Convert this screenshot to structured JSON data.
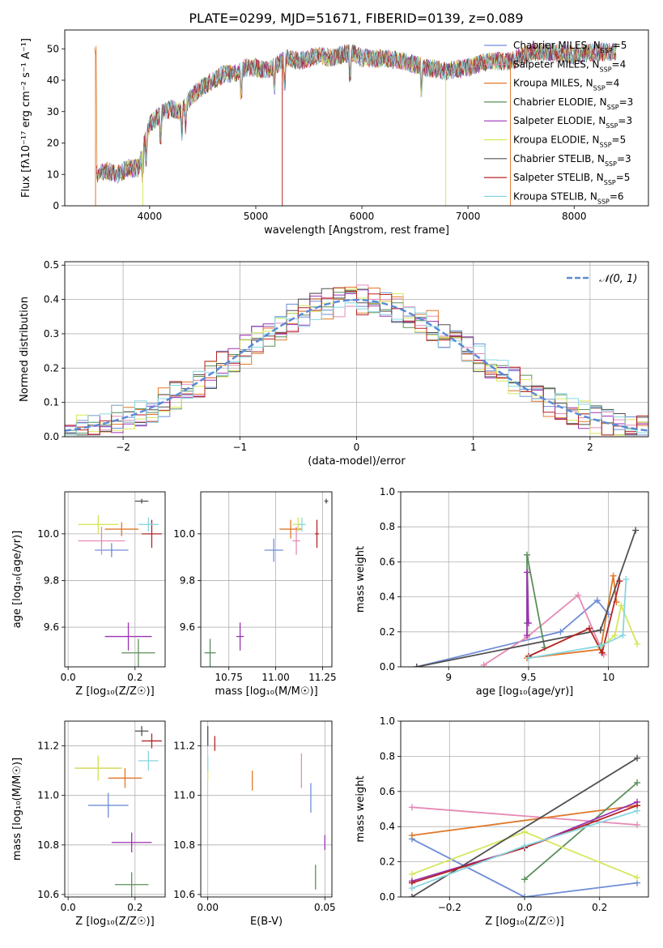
{
  "figure_title": "PLATE=0299, MJD=51671, FIBERID=0139, z=0.089",
  "colors": {
    "Chabrier MILES": "#6f8dd6",
    "Salpeter MILES": "#e58ab5",
    "Kroupa MILES": "#e0782a",
    "Chabrier ELODIE": "#5b8f5b",
    "Salpeter ELODIE": "#9b33b3",
    "Kroupa ELODIE": "#d6e65a",
    "Chabrier STELIB": "#505050",
    "Salpeter STELIB": "#b52424",
    "Kroupa STELIB": "#88d6e0"
  },
  "chart_data": [
    {
      "type": "line",
      "title": "PLATE=0299, MJD=51671, FIBERID=0139, z=0.089",
      "xlabel": "wavelength [Angstrom, rest frame]",
      "ylabel": "Flux [fλ10⁻¹⁷ erg cm⁻² s⁻¹ A⁻¹]",
      "xlim": [
        3200,
        8700
      ],
      "ylim": [
        0,
        56
      ],
      "xticks": [
        4000,
        5000,
        6000,
        7000,
        8000
      ],
      "yticks": [
        0,
        10,
        20,
        30,
        40,
        50
      ],
      "legend_position": "top-right",
      "continuum": {
        "x": [
          3500,
          3600,
          3700,
          3800,
          3900,
          3950,
          4000,
          4100,
          4200,
          4300,
          4400,
          4500,
          4600,
          4700,
          4800,
          4900,
          5000,
          5100,
          5200,
          5300,
          5400,
          5500,
          5600,
          5700,
          5800,
          5900,
          6000,
          6200,
          6400,
          6600,
          6800,
          7000,
          7200,
          7400,
          7600,
          7800,
          8000,
          8200,
          8400
        ],
        "y": [
          10,
          11,
          10,
          12,
          12,
          20,
          26,
          29,
          31,
          30,
          35,
          38,
          40,
          42,
          42,
          44,
          44,
          43,
          45,
          47,
          46,
          47,
          48,
          47,
          48,
          49,
          47,
          47,
          46,
          44,
          43,
          44,
          46,
          46,
          49,
          49,
          48,
          49,
          49
        ]
      },
      "series": [
        {
          "name": "Chabrier MILES, N_SSP=5"
        },
        {
          "name": "Salpeter MILES, N_SSP=4"
        },
        {
          "name": "Kroupa MILES, N_SSP=4"
        },
        {
          "name": "Chabrier ELODIE, N_SSP=3"
        },
        {
          "name": "Salpeter ELODIE, N_SSP=3"
        },
        {
          "name": "Kroupa ELODIE, N_SSP=5"
        },
        {
          "name": "Chabrier STELIB, N_SSP=3"
        },
        {
          "name": "Salpeter STELIB, N_SSP=5"
        },
        {
          "name": "Kroupa STELIB, N_SSP=6"
        }
      ]
    },
    {
      "type": "bar",
      "xlabel": "(data-model)/error",
      "ylabel": "Normed distribution",
      "xlim": [
        -2.5,
        2.5
      ],
      "ylim": [
        0,
        0.51
      ],
      "xticks": [
        -2,
        -1,
        0,
        1,
        2
      ],
      "yticks": [
        0.0,
        0.1,
        0.2,
        0.3,
        0.4,
        0.5
      ],
      "reference": {
        "name": "𝒩(0, 1)",
        "style": "dashed",
        "color": "#5b8bd6"
      },
      "bin_width": 0.1
    },
    {
      "type": "scatter",
      "xlabel": "Z [log₁₀(Z/Z☉)]",
      "ylabel": "age  [log₁₀(age/yr)]",
      "xlim": [
        -0.01,
        0.29
      ],
      "ylim": [
        9.43,
        10.18
      ],
      "xticks": [
        0.0,
        0.2
      ],
      "yticks": [
        9.6,
        9.8,
        10.0
      ],
      "points": [
        {
          "x": 0.13,
          "y": 9.93,
          "xerr": 0.05,
          "yerr": 0.03
        },
        {
          "x": 0.1,
          "y": 9.97,
          "xerr": 0.07,
          "yerr": 0.06
        },
        {
          "x": 0.16,
          "y": 10.02,
          "xerr": 0.05,
          "yerr": 0.03
        },
        {
          "x": 0.21,
          "y": 9.49,
          "xerr": 0.05,
          "yerr": 0.06
        },
        {
          "x": 0.18,
          "y": 9.56,
          "xerr": 0.07,
          "yerr": 0.06
        },
        {
          "x": 0.09,
          "y": 10.04,
          "xerr": 0.06,
          "yerr": 0.04
        },
        {
          "x": 0.22,
          "y": 10.14,
          "xerr": 0.02,
          "yerr": 0.01
        },
        {
          "x": 0.25,
          "y": 10.0,
          "xerr": 0.03,
          "yerr": 0.06
        },
        {
          "x": 0.24,
          "y": 10.04,
          "xerr": 0.03,
          "yerr": 0.03
        }
      ]
    },
    {
      "type": "scatter",
      "xlabel": "mass [log₁₀(M/M☉)]",
      "ylabel": "",
      "xlim": [
        10.6,
        11.3
      ],
      "ylim": [
        9.43,
        10.18
      ],
      "xticks": [
        10.75,
        11.0,
        11.25
      ],
      "yticks": [
        9.6,
        9.8,
        10.0
      ],
      "points": [
        {
          "x": 10.99,
          "y": 9.93,
          "xerr": 0.05,
          "yerr": 0.05
        },
        {
          "x": 11.11,
          "y": 9.97,
          "xerr": 0.02,
          "yerr": 0.06
        },
        {
          "x": 11.08,
          "y": 10.02,
          "xerr": 0.06,
          "yerr": 0.04
        },
        {
          "x": 10.65,
          "y": 9.49,
          "xerr": 0.03,
          "yerr": 0.06
        },
        {
          "x": 10.81,
          "y": 9.56,
          "xerr": 0.02,
          "yerr": 0.06
        },
        {
          "x": 11.12,
          "y": 10.04,
          "xerr": 0.03,
          "yerr": 0.03
        },
        {
          "x": 11.27,
          "y": 10.14,
          "xerr": 0.01,
          "yerr": 0.01
        },
        {
          "x": 11.22,
          "y": 10.0,
          "xerr": 0.01,
          "yerr": 0.06
        },
        {
          "x": 11.14,
          "y": 10.04,
          "xerr": 0.02,
          "yerr": 0.03
        }
      ]
    },
    {
      "type": "line",
      "xlabel": "age  [log₁₀(age/yr)]",
      "ylabel": "mass weight",
      "xlim": [
        8.7,
        10.25
      ],
      "ylim": [
        0,
        1.0
      ],
      "xticks": [
        9.0,
        9.5,
        10.0
      ],
      "yticks": [
        0.0,
        0.2,
        0.4,
        0.6,
        0.8,
        1.0
      ],
      "series": [
        {
          "name": "Chabrier MILES",
          "x": [
            8.8,
            9.7,
            9.93,
            10.0
          ],
          "y": [
            0.0,
            0.2,
            0.38,
            0.3
          ]
        },
        {
          "name": "Salpeter MILES",
          "x": [
            9.22,
            9.49,
            9.81,
            9.97
          ],
          "y": [
            0.01,
            0.17,
            0.41,
            0.07
          ]
        },
        {
          "name": "Kroupa MILES",
          "x": [
            9.49,
            9.95,
            10.03,
            10.05
          ],
          "y": [
            0.05,
            0.1,
            0.52,
            0.37
          ]
        },
        {
          "name": "Chabrier ELODIE",
          "x": [
            9.49,
            9.49,
            9.6
          ],
          "y": [
            0.25,
            0.64,
            0.11
          ]
        },
        {
          "name": "Salpeter ELODIE",
          "x": [
            9.49,
            9.49,
            9.5
          ],
          "y": [
            0.18,
            0.54,
            0.25
          ]
        },
        {
          "name": "Kroupa ELODIE",
          "x": [
            9.95,
            10.04,
            10.08,
            10.18
          ],
          "y": [
            0.11,
            0.18,
            0.35,
            0.13
          ]
        },
        {
          "name": "Chabrier STELIB",
          "x": [
            8.8,
            9.95,
            10.17
          ],
          "y": [
            0.0,
            0.21,
            0.78
          ]
        },
        {
          "name": "Salpeter STELIB",
          "x": [
            9.5,
            9.88,
            9.96,
            10.07
          ],
          "y": [
            0.06,
            0.22,
            0.08,
            0.49
          ]
        },
        {
          "name": "Kroupa STELIB",
          "x": [
            9.5,
            9.95,
            10.09,
            10.11
          ],
          "y": [
            0.05,
            0.12,
            0.18,
            0.5
          ]
        }
      ]
    },
    {
      "type": "scatter",
      "xlabel": "Z [log₁₀(Z/Z☉)]",
      "ylabel": "mass [log₁₀(M/M☉)]",
      "xlim": [
        -0.01,
        0.29
      ],
      "ylim": [
        10.59,
        11.3
      ],
      "xticks": [
        0.0,
        0.2
      ],
      "yticks": [
        10.6,
        10.8,
        11.0,
        11.2
      ],
      "points": [
        {
          "x": 0.12,
          "y": 10.96,
          "xerr": 0.06,
          "yerr": 0.05
        },
        {
          "x": 0.09,
          "y": 11.11,
          "xerr": 0.07,
          "yerr": 0.05
        },
        {
          "x": 0.17,
          "y": 11.07,
          "xerr": 0.05,
          "yerr": 0.04
        },
        {
          "x": 0.19,
          "y": 10.64,
          "xerr": 0.05,
          "yerr": 0.05
        },
        {
          "x": 0.19,
          "y": 10.81,
          "xerr": 0.06,
          "yerr": 0.04
        },
        {
          "x": 0.09,
          "y": 11.11,
          "xerr": 0.07,
          "yerr": 0.05
        },
        {
          "x": 0.22,
          "y": 11.26,
          "xerr": 0.02,
          "yerr": 0.02
        },
        {
          "x": 0.25,
          "y": 11.22,
          "xerr": 0.03,
          "yerr": 0.03
        },
        {
          "x": 0.24,
          "y": 11.14,
          "xerr": 0.03,
          "yerr": 0.04
        }
      ]
    },
    {
      "type": "scatter",
      "xlabel": "E(B-V)",
      "ylabel": "",
      "xlim": [
        -0.003,
        0.053
      ],
      "ylim": [
        10.59,
        11.3
      ],
      "xticks": [
        0.0,
        0.05
      ],
      "yticks": [
        10.6,
        10.8,
        11.0,
        11.2
      ],
      "points": [
        {
          "x": 0.044,
          "y": 10.99,
          "yerr": 0.06
        },
        {
          "x": 0.04,
          "y": 11.1,
          "yerr": 0.07
        },
        {
          "x": 0.019,
          "y": 11.06,
          "yerr": 0.04
        },
        {
          "x": 0.046,
          "y": 10.67,
          "yerr": 0.05
        },
        {
          "x": 0.05,
          "y": 10.81,
          "yerr": 0.03
        },
        {
          "x": 0.0,
          "y": 11.09,
          "yerr": 0.03
        },
        {
          "x": 0.0,
          "y": 11.24,
          "yerr": 0.04
        },
        {
          "x": 0.003,
          "y": 11.21,
          "yerr": 0.03
        },
        {
          "x": 0.0,
          "y": 11.13,
          "yerr": 0.03
        }
      ]
    },
    {
      "type": "line",
      "xlabel": "Z [log₁₀(Z/Z☉)]",
      "ylabel": "mass weight",
      "xlim": [
        -0.33,
        0.33
      ],
      "ylim": [
        0,
        1.0
      ],
      "xticks": [
        -0.2,
        0.0,
        0.2
      ],
      "yticks": [
        0.0,
        0.2,
        0.4,
        0.6,
        0.8,
        1.0
      ],
      "series": [
        {
          "name": "Chabrier MILES",
          "x": [
            -0.3,
            0.0,
            0.3
          ],
          "y": [
            0.33,
            0.0,
            0.08
          ]
        },
        {
          "name": "Salpeter MILES",
          "x": [
            -0.3,
            0.3
          ],
          "y": [
            0.51,
            0.41
          ]
        },
        {
          "name": "Kroupa MILES",
          "x": [
            -0.3,
            0.3
          ],
          "y": [
            0.35,
            0.52
          ]
        },
        {
          "name": "Chabrier ELODIE",
          "x": [
            0.0,
            0.3
          ],
          "y": [
            0.1,
            0.65
          ]
        },
        {
          "name": "Salpeter ELODIE",
          "x": [
            -0.3,
            0.0,
            0.3
          ],
          "y": [
            0.09,
            0.28,
            0.54
          ]
        },
        {
          "name": "Kroupa ELODIE",
          "x": [
            -0.3,
            0.0,
            0.3
          ],
          "y": [
            0.13,
            0.37,
            0.11
          ]
        },
        {
          "name": "Chabrier STELIB",
          "x": [
            -0.3,
            0.3
          ],
          "y": [
            0.0,
            0.79
          ]
        },
        {
          "name": "Salpeter STELIB",
          "x": [
            -0.3,
            0.0,
            0.3
          ],
          "y": [
            0.08,
            0.28,
            0.52
          ]
        },
        {
          "name": "Kroupa STELIB",
          "x": [
            -0.3,
            0.0,
            0.3
          ],
          "y": [
            0.05,
            0.29,
            0.49
          ]
        }
      ]
    }
  ]
}
